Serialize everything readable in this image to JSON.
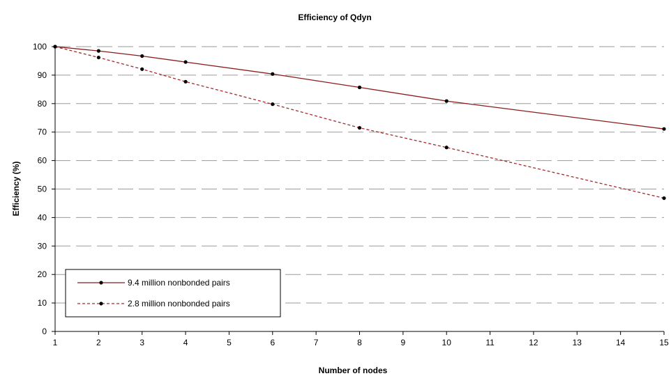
{
  "chart_data": {
    "type": "line",
    "title": "Efficiency of Qdyn",
    "xlabel": "Number of nodes",
    "ylabel": "Efficiency (%)",
    "x_ticks": [
      1,
      2,
      3,
      4,
      5,
      6,
      7,
      8,
      9,
      10,
      11,
      12,
      13,
      14,
      15
    ],
    "y_ticks": [
      0,
      10,
      20,
      30,
      40,
      50,
      60,
      70,
      80,
      90,
      100
    ],
    "xlim": [
      1,
      15
    ],
    "ylim": [
      0,
      100
    ],
    "grid": "horizontal dashed",
    "legend_position": "bottom-left",
    "series": [
      {
        "name": "9.4 million nonbonded pairs",
        "color": "#8b1a1a",
        "line_style": "solid",
        "x": [
          1,
          2,
          3,
          4,
          6,
          8,
          10,
          15
        ],
        "y": [
          100,
          98.5,
          96.7,
          94.6,
          90.4,
          85.7,
          80.9,
          71.1
        ]
      },
      {
        "name": "2.8 million nonbonded pairs",
        "color": "#a52a2a",
        "line_style": "dashed",
        "x": [
          1,
          2,
          3,
          4,
          6,
          8,
          10,
          15
        ],
        "y": [
          100,
          96.2,
          92.1,
          87.7,
          79.8,
          71.5,
          64.6,
          46.8
        ]
      }
    ]
  }
}
